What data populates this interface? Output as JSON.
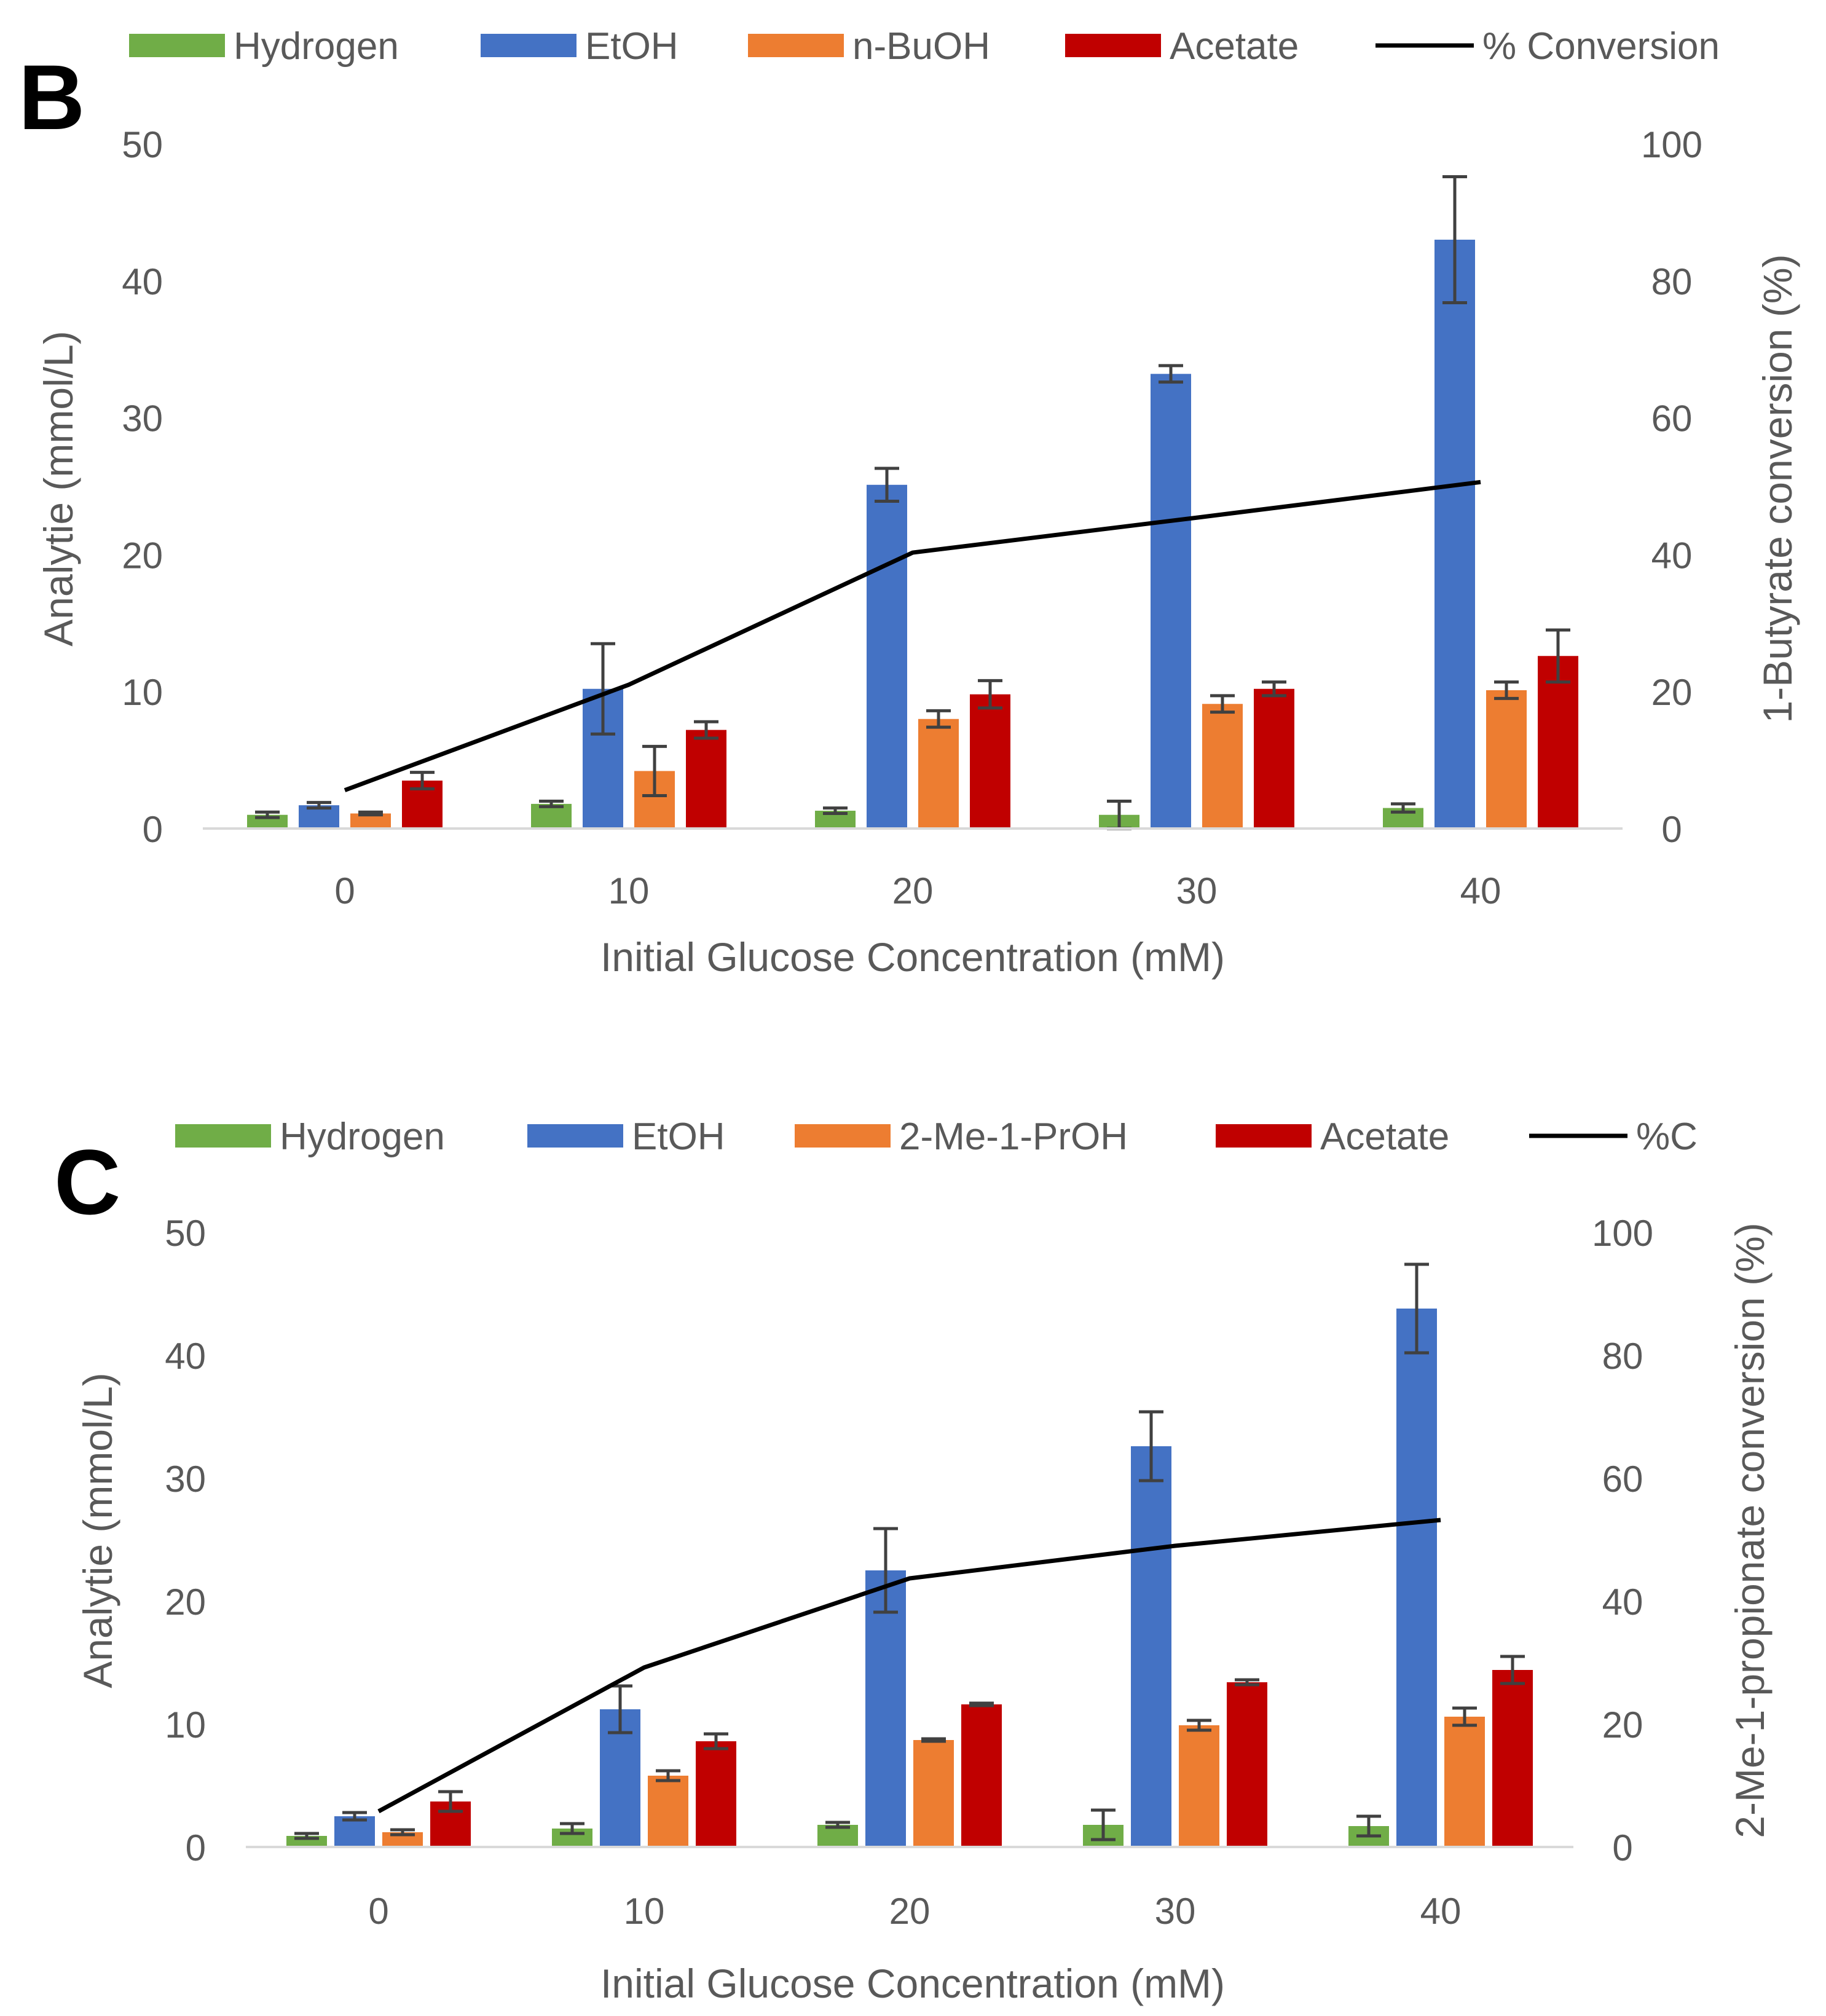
{
  "colors": {
    "hydrogen": "#70AD47",
    "etoh": "#4472C4",
    "alcohol": "#ED7D31",
    "acetate": "#C00000",
    "line": "#000000",
    "axis_text": "#595959",
    "grid": "#D9D9D9",
    "error_bar": "#404040"
  },
  "chart_data": [
    {
      "type": "bar",
      "panel_label": "B",
      "title": "",
      "xlabel": "Initial Glucose Concentration (mM)",
      "ylabel": "Analytie (mmol/L)",
      "y2label": "1-Butyrate conversion (%)",
      "categories": [
        "0",
        "10",
        "20",
        "30",
        "40"
      ],
      "ylim": [
        0,
        50
      ],
      "y2lim": [
        0,
        100
      ],
      "yticks": [
        "0",
        "10",
        "20",
        "30",
        "40",
        "50"
      ],
      "y2ticks": [
        "0",
        "20",
        "40",
        "60",
        "80",
        "100"
      ],
      "legend_position": "top",
      "series": [
        {
          "name": "Hydrogen",
          "values": [
            1.0,
            1.8,
            1.3,
            1.0,
            1.5
          ],
          "errors": [
            0.2,
            0.2,
            0.2,
            1.0,
            0.3
          ]
        },
        {
          "name": "EtOH",
          "values": [
            1.7,
            10.2,
            25.1,
            33.2,
            43.0
          ],
          "errors": [
            0.2,
            3.3,
            1.2,
            0.6,
            4.6
          ]
        },
        {
          "name": "n-BuOH",
          "values": [
            1.1,
            4.2,
            8.0,
            9.1,
            10.1
          ],
          "errors": [
            0.1,
            1.8,
            0.6,
            0.6,
            0.6
          ]
        },
        {
          "name": "Acetate",
          "values": [
            3.5,
            7.2,
            9.8,
            10.2,
            12.6
          ],
          "errors": [
            0.6,
            0.6,
            1.0,
            0.5,
            1.9
          ]
        }
      ],
      "line_series": {
        "name": "% Conversion",
        "axis": "right",
        "values": [
          5.6,
          21.0,
          40.3,
          45.4,
          50.6
        ]
      }
    },
    {
      "type": "bar",
      "panel_label": "C",
      "title": "",
      "xlabel": "Initial Glucose Concentration (mM)",
      "ylabel": "Analytie (mmol/L)",
      "y2label": "2-Me-1-propionate conversion (%)",
      "categories": [
        "0",
        "10",
        "20",
        "30",
        "40"
      ],
      "ylim": [
        0,
        50
      ],
      "y2lim": [
        0,
        100
      ],
      "yticks": [
        "0",
        "10",
        "20",
        "30",
        "40",
        "50"
      ],
      "y2ticks": [
        "0",
        "20",
        "40",
        "60",
        "80",
        "100"
      ],
      "legend_position": "top",
      "series": [
        {
          "name": "Hydrogen",
          "values": [
            0.9,
            1.5,
            1.8,
            1.8,
            1.7
          ],
          "errors": [
            0.2,
            0.4,
            0.2,
            1.2,
            0.8
          ]
        },
        {
          "name": "EtOH",
          "values": [
            2.5,
            11.2,
            22.5,
            32.6,
            43.8
          ],
          "errors": [
            0.3,
            1.9,
            3.4,
            2.8,
            3.6
          ]
        },
        {
          "name": "2-Me-1-PrOH",
          "values": [
            1.2,
            5.8,
            8.7,
            9.9,
            10.6
          ],
          "errors": [
            0.2,
            0.4,
            0.1,
            0.4,
            0.7
          ]
        },
        {
          "name": "Acetate",
          "values": [
            3.7,
            8.6,
            11.6,
            13.4,
            14.4
          ],
          "errors": [
            0.8,
            0.6,
            0.1,
            0.2,
            1.1
          ]
        }
      ],
      "line_series": {
        "name": "%C",
        "axis": "right",
        "values": [
          5.8,
          29.2,
          43.7,
          49.0,
          53.2
        ]
      }
    }
  ]
}
